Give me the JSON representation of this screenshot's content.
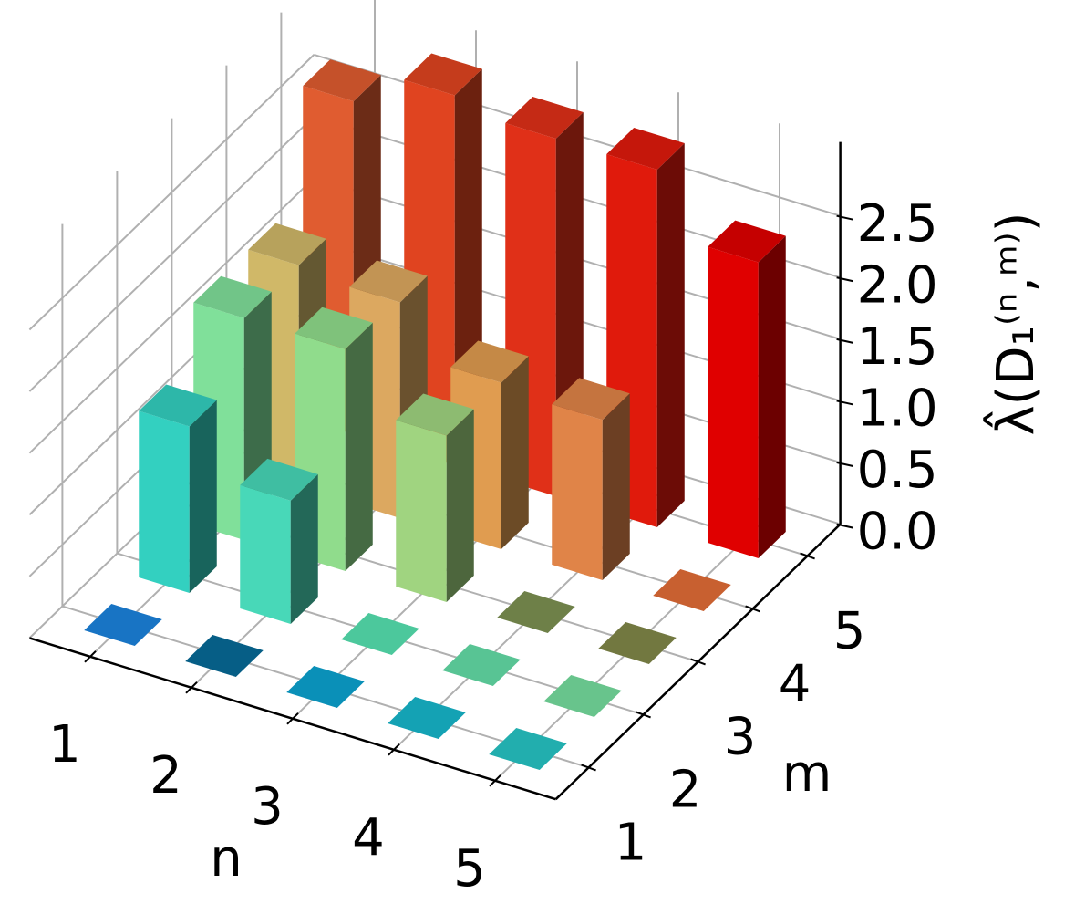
{
  "chart_data": {
    "type": "bar3d",
    "xlabel": "n",
    "ylabel": "m",
    "zlabel": "λ̂(D₁⁽ⁿ,ᵐ⁾)",
    "xticks": [
      1,
      2,
      3,
      4,
      5
    ],
    "yticks": [
      1,
      2,
      3,
      4,
      5
    ],
    "zlim": [
      0,
      3.1
    ],
    "zticks": [
      {
        "value": 0,
        "label": "0.0"
      },
      0.5,
      {
        "value": 1,
        "label": "1.0"
      },
      1.5,
      {
        "value": 2,
        "label": "2.0"
      },
      2.5
    ],
    "grid": true,
    "z": [
      [
        0,
        0,
        0,
        0,
        0
      ],
      [
        1.35,
        1.0,
        0,
        0,
        0
      ],
      [
        1.8,
        1.8,
        1.35,
        0,
        0
      ],
      [
        1.8,
        1.75,
        1.35,
        1.3,
        0
      ],
      [
        2.7,
        3.0,
        2.9,
        2.9,
        2.4
      ]
    ],
    "colors": [
      [
        "#1874c4",
        "#065e86",
        "#0a90b8",
        "#14a2b4",
        "#22aeae"
      ],
      [
        "#33d0c0",
        "#48d8b8",
        "#4cc89c",
        "#58c494",
        "#68c48c"
      ],
      [
        "#80e09a",
        "#90dc8c",
        "#a0d480",
        "#6e8048",
        "#727840"
      ],
      [
        "#d0b868",
        "#dca860",
        "#e09c50",
        "#e08448",
        "#c86030"
      ],
      [
        "#e05c30",
        "#e04420",
        "#e03018",
        "#e01a0c",
        "#e00000"
      ]
    ]
  }
}
